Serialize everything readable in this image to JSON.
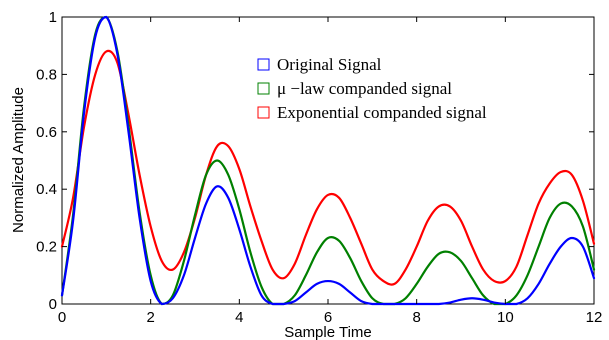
{
  "chart_data": {
    "type": "line",
    "title": "",
    "xlabel": "Sample Time",
    "ylabel": "Normalized Amplitude",
    "xlim": [
      0,
      12
    ],
    "ylim": [
      0,
      1
    ],
    "x_ticks": [
      "0",
      "2",
      "4",
      "6",
      "8",
      "10",
      "12"
    ],
    "y_ticks": [
      "0",
      "0.2",
      "0.4",
      "0.6",
      "0.8",
      "1"
    ],
    "grid": false,
    "legend_position": "top-right",
    "x": [
      0,
      0.25,
      0.5,
      0.75,
      1.0,
      1.25,
      1.5,
      1.75,
      2.0,
      2.25,
      2.5,
      2.75,
      3.0,
      3.25,
      3.5,
      3.75,
      4.0,
      4.25,
      4.5,
      4.75,
      5.0,
      5.25,
      5.5,
      5.75,
      6.0,
      6.25,
      6.5,
      6.75,
      7.0,
      7.25,
      7.5,
      7.75,
      8.0,
      8.25,
      8.5,
      8.75,
      9.0,
      9.25,
      9.5,
      9.75,
      10.0,
      10.25,
      10.5,
      10.75,
      11.0,
      11.25,
      11.5,
      11.75,
      12.0
    ],
    "series": [
      {
        "name": "Original Signal",
        "color": "#0000ff",
        "values": [
          0.03,
          0.29,
          0.67,
          0.93,
          1.0,
          0.87,
          0.6,
          0.3,
          0.08,
          0.0,
          0.02,
          0.1,
          0.23,
          0.35,
          0.41,
          0.37,
          0.26,
          0.13,
          0.03,
          0.0,
          0.0,
          0.01,
          0.04,
          0.07,
          0.08,
          0.07,
          0.04,
          0.01,
          0.0,
          0.0,
          0.0,
          0.0,
          0.0,
          0.0,
          0.0,
          0.005,
          0.015,
          0.02,
          0.015,
          0.005,
          0.0,
          0.0,
          0.02,
          0.07,
          0.14,
          0.2,
          0.23,
          0.2,
          0.09
        ]
      },
      {
        "name": "μ −law companded signal",
        "color": "#008000",
        "values": [
          0.03,
          0.31,
          0.69,
          0.94,
          1.0,
          0.88,
          0.62,
          0.32,
          0.1,
          0.0,
          0.03,
          0.15,
          0.31,
          0.45,
          0.5,
          0.45,
          0.33,
          0.18,
          0.06,
          0.0,
          0.0,
          0.03,
          0.1,
          0.18,
          0.23,
          0.22,
          0.16,
          0.08,
          0.02,
          0.0,
          0.0,
          0.02,
          0.07,
          0.13,
          0.175,
          0.18,
          0.15,
          0.09,
          0.03,
          0.0,
          0.0,
          0.03,
          0.1,
          0.2,
          0.3,
          0.35,
          0.34,
          0.27,
          0.12
        ]
      },
      {
        "name": "Exponential companded signal",
        "color": "#ff0000",
        "values": [
          0.2,
          0.37,
          0.62,
          0.8,
          0.88,
          0.84,
          0.66,
          0.45,
          0.27,
          0.15,
          0.12,
          0.18,
          0.3,
          0.45,
          0.55,
          0.55,
          0.47,
          0.34,
          0.22,
          0.12,
          0.09,
          0.14,
          0.24,
          0.33,
          0.38,
          0.37,
          0.3,
          0.21,
          0.12,
          0.08,
          0.07,
          0.12,
          0.2,
          0.29,
          0.34,
          0.34,
          0.29,
          0.2,
          0.12,
          0.08,
          0.08,
          0.13,
          0.24,
          0.35,
          0.42,
          0.46,
          0.45,
          0.36,
          0.21
        ]
      }
    ]
  }
}
